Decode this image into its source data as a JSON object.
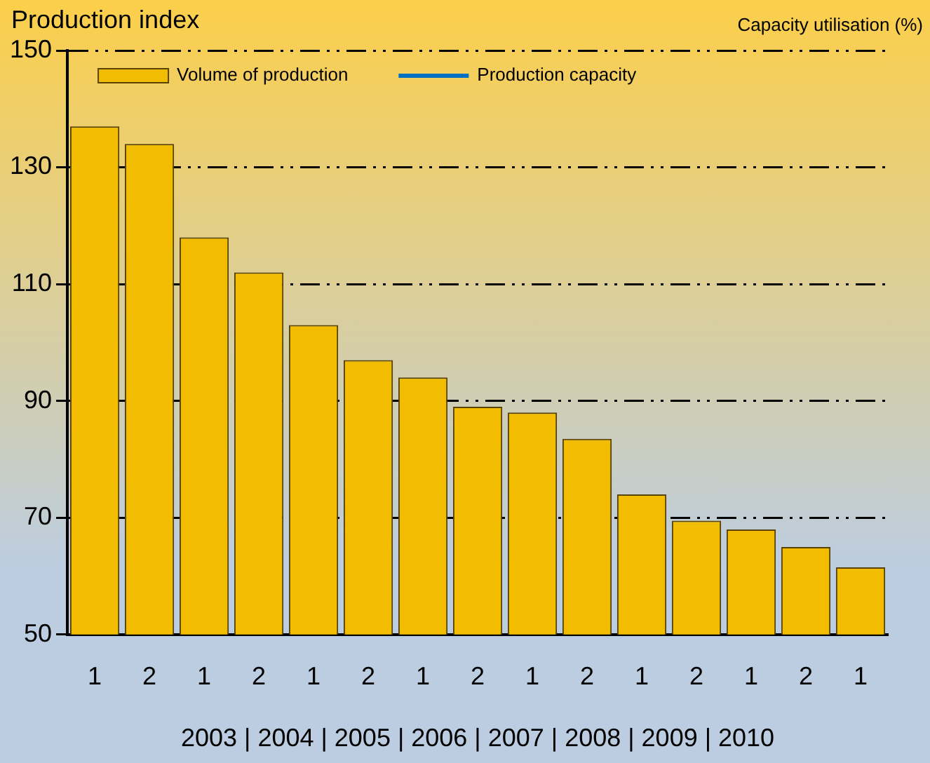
{
  "chart_data": {
    "type": "bar",
    "ylabel": "Production index",
    "y2label": "Capacity utilisation (%)",
    "categories": [
      "1",
      "2",
      "1",
      "2",
      "1",
      "2",
      "1",
      "2",
      "1",
      "2",
      "1",
      "2",
      "1",
      "2",
      "1"
    ],
    "series": [
      {
        "name": "Volume of production",
        "color": "#f2bc00",
        "values": [
          137,
          134,
          118,
          112,
          103,
          97,
          94,
          89,
          88,
          83.5,
          74,
          69.5,
          68,
          65,
          61.5
        ]
      },
      {
        "name": "Production capacity",
        "type": "line",
        "color": "#0070c0",
        "values": [
          null,
          null,
          null,
          null,
          null,
          null,
          null,
          null,
          null,
          null,
          null,
          null,
          null,
          null,
          null
        ]
      }
    ],
    "ylim": [
      50,
      150
    ],
    "yticks": [
      50,
      70,
      90,
      110,
      130,
      150
    ],
    "grid": "y",
    "legend": "top left",
    "line_style": "dashed",
    "annotations": [
      "2003 | 2004 | 2005 | 2006 | 2007 | 2008 | 2009 | 2010"
    ]
  }
}
